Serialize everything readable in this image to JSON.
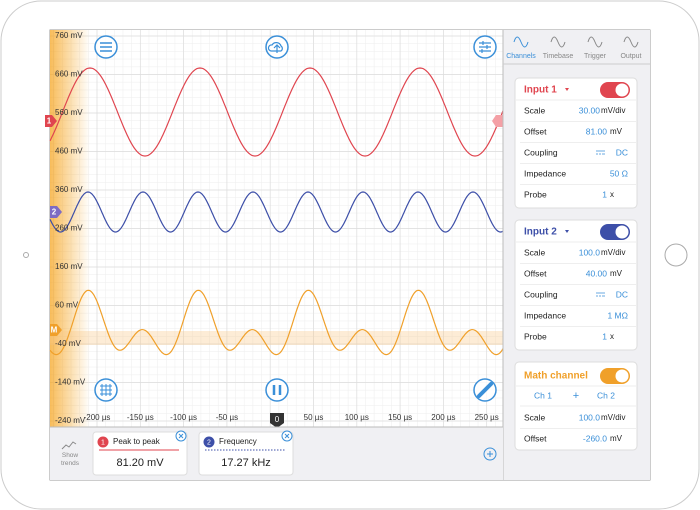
{
  "plot": {
    "y_labels": [
      "760 mV",
      "660 mV",
      "560 mV",
      "460 mV",
      "360 mV",
      "260 mV",
      "160 mV",
      "60 mV",
      "-40 mV",
      "-140 mV",
      "-240 mV"
    ],
    "x_labels": [
      "-200 µs",
      "-150 µs",
      "-100 µs",
      "-50 µs",
      "50 µs",
      "100 µs",
      "150 µs",
      "200 µs",
      "250 µs"
    ],
    "zero_marker": "0",
    "channel_markers": [
      "1",
      "2",
      "M"
    ]
  },
  "tabs": [
    "Channels",
    "Timebase",
    "Trigger",
    "Output"
  ],
  "inputs": [
    {
      "title": "Input 1",
      "rows": [
        {
          "label": "Scale",
          "value": "30.00",
          "unit": "mV/div"
        },
        {
          "label": "Offset",
          "value": "81.00",
          "unit": "mV"
        },
        {
          "label": "Coupling",
          "value": "DC"
        },
        {
          "label": "Impedance",
          "value": "50 Ω"
        },
        {
          "label": "Probe",
          "value": "1",
          "unit": "x"
        }
      ]
    },
    {
      "title": "Input 2",
      "rows": [
        {
          "label": "Scale",
          "value": "100.0",
          "unit": "mV/div"
        },
        {
          "label": "Offset",
          "value": "40.00",
          "unit": "mV"
        },
        {
          "label": "Coupling",
          "value": "DC"
        },
        {
          "label": "Impedance",
          "value": "1 MΩ"
        },
        {
          "label": "Probe",
          "value": "1",
          "unit": "x"
        }
      ]
    }
  ],
  "math": {
    "title": "Math channel",
    "ch1": "Ch 1",
    "op": "+",
    "ch2": "Ch 2",
    "rows": [
      {
        "label": "Scale",
        "value": "100.0",
        "unit": "mV/div"
      },
      {
        "label": "Offset",
        "value": "-260.0",
        "unit": "mV"
      }
    ]
  },
  "measurements": {
    "show_trends": "Show trends",
    "items": [
      {
        "badge": "1",
        "label": "Peak to peak",
        "value": "81.20 mV"
      },
      {
        "badge": "2",
        "label": "Frequency",
        "value": "17.27 kHz"
      }
    ]
  }
}
